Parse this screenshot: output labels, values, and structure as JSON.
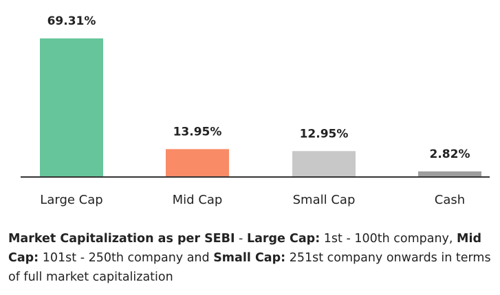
{
  "chart_data": {
    "type": "bar",
    "categories": [
      "Large Cap",
      "Mid Cap",
      "Small Cap",
      "Cash"
    ],
    "values": [
      69.31,
      13.95,
      12.95,
      2.82
    ],
    "value_labels": [
      "69.31%",
      "13.95%",
      "12.95%",
      "2.82%"
    ],
    "colors": [
      "#67c59c",
      "#f98b67",
      "#c8c8c8",
      "#9e9e9e"
    ],
    "baseline_color": "#333333",
    "ylim": [
      0,
      69.31
    ],
    "grid": false,
    "legend": "none"
  },
  "note": {
    "lead_bold": "Market Capitalization as per SEBI",
    "sep": " - ",
    "large_bold": "Large Cap:",
    "large_text": " 1st - 100th company, ",
    "mid_bold": "Mid Cap:",
    "mid_text": " 101st - 250th company and ",
    "small_bold": "Small Cap:",
    "small_text": " 251st company onwards in terms of full market capitalization"
  }
}
